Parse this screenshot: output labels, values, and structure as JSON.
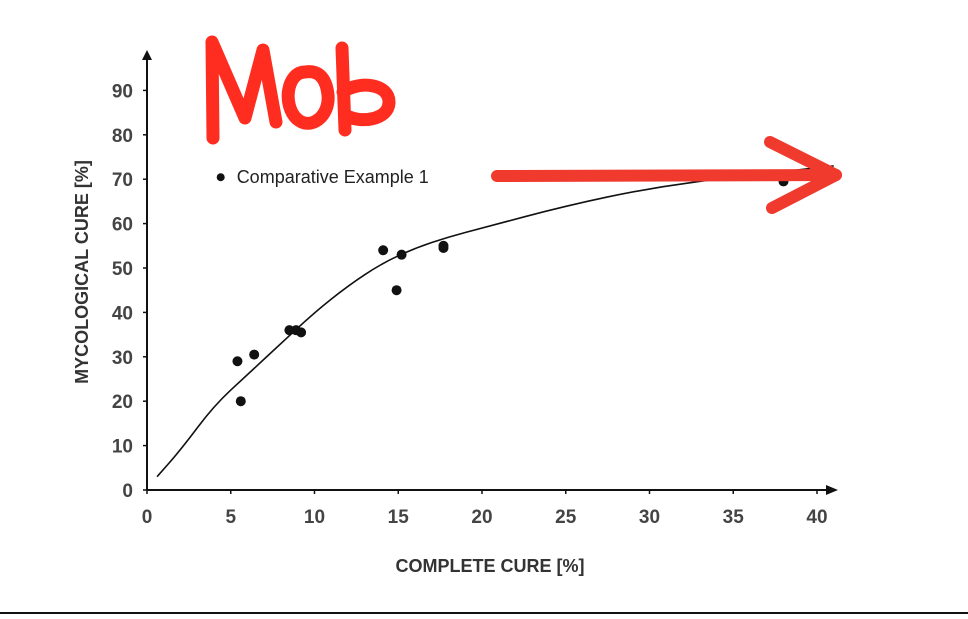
{
  "chart_data": {
    "type": "scatter",
    "xlabel": "COMPLETE CURE [%]",
    "ylabel": "MYCOLOGICAL CURE [%]",
    "xlim": [
      0,
      41
    ],
    "ylim": [
      0,
      97
    ],
    "x_ticks": [
      0,
      5,
      10,
      15,
      20,
      25,
      30,
      35,
      40
    ],
    "y_ticks": [
      0,
      10,
      20,
      30,
      40,
      50,
      60,
      70,
      80,
      90
    ],
    "grid": false,
    "series": [
      {
        "points": [
          {
            "x": 5.4,
            "y": 29
          },
          {
            "x": 5.6,
            "y": 20
          },
          {
            "x": 6.4,
            "y": 30.5
          },
          {
            "x": 8.5,
            "y": 36
          },
          {
            "x": 8.9,
            "y": 36
          },
          {
            "x": 9.2,
            "y": 35.5
          },
          {
            "x": 14.1,
            "y": 54
          },
          {
            "x": 14.9,
            "y": 45
          },
          {
            "x": 15.2,
            "y": 53
          },
          {
            "x": 17.7,
            "y": 55
          },
          {
            "x": 17.7,
            "y": 54.5
          },
          {
            "x": 38,
            "y": 69.5
          }
        ]
      },
      {
        "type": "line",
        "x": [
          0.6,
          2,
          4,
          6,
          8,
          10,
          12,
          14,
          16,
          18,
          20,
          25,
          30,
          35,
          37.5,
          41
        ],
        "y": [
          3,
          9,
          19,
          26,
          33,
          40,
          46,
          51,
          54.5,
          57,
          59,
          64,
          68,
          70.5,
          71.5,
          73
        ]
      }
    ],
    "annotations": [
      {
        "text": "Comparative Example 1",
        "x": 4.4,
        "y": 70
      }
    ]
  },
  "handwriting": {
    "text": "Mob",
    "color": "#ff2d1f"
  },
  "arrow_color": "#f03a2e"
}
